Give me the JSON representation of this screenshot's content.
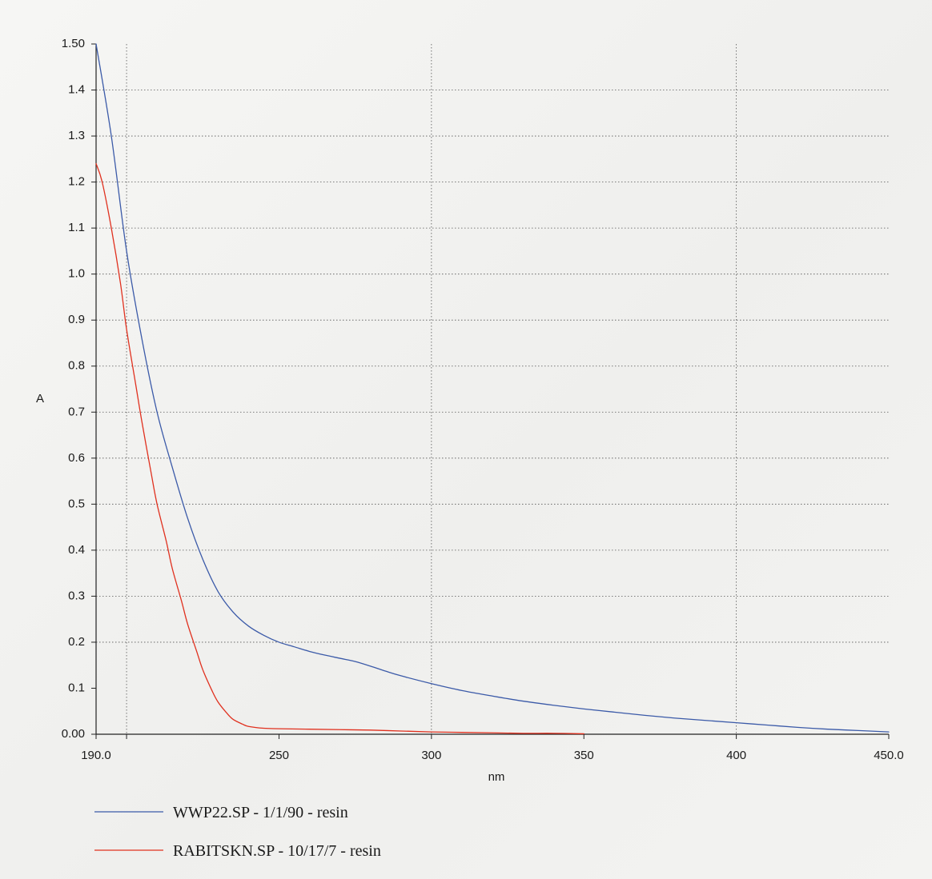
{
  "chart_data": {
    "type": "line",
    "title": "",
    "xlabel": "nm",
    "ylabel": "A",
    "xlim": [
      190,
      450
    ],
    "ylim": [
      0,
      1.5
    ],
    "x_ticks": [
      190,
      200,
      250,
      300,
      350,
      400,
      450
    ],
    "x_tick_labels": [
      "190.0",
      "",
      "250",
      "300",
      "350",
      "400",
      "450.0"
    ],
    "x_grid": [
      200,
      300,
      400
    ],
    "y_ticks": [
      0,
      0.1,
      0.2,
      0.3,
      0.4,
      0.5,
      0.6,
      0.7,
      0.8,
      0.9,
      1.0,
      1.1,
      1.2,
      1.3,
      1.4,
      1.5
    ],
    "y_tick_labels": [
      "0.00",
      "0.1",
      "0.2",
      "0.3",
      "0.4",
      "0.5",
      "0.6",
      "0.7",
      "0.8",
      "0.9",
      "1.0",
      "1.1",
      "1.2",
      "1.3",
      "1.4",
      "1.50"
    ],
    "y_grid": [
      0.2,
      0.3,
      0.4,
      0.5,
      0.6,
      0.7,
      0.8,
      0.9,
      1.0,
      1.1,
      1.2,
      1.3,
      1.4
    ],
    "grid": true,
    "legend_position": "bottom-left",
    "series": [
      {
        "name": "WWP22.SP - 1/1/90 - resin",
        "color": "#3b5aa8",
        "x": [
          190,
          195,
          200,
          205,
          210,
          215,
          220,
          225,
          230,
          235,
          240,
          245,
          250,
          255,
          260,
          265,
          270,
          275,
          280,
          285,
          290,
          300,
          310,
          320,
          330,
          340,
          350,
          360,
          370,
          380,
          390,
          400,
          410,
          420,
          430,
          440,
          450
        ],
        "y": [
          1.5,
          1.3,
          1.05,
          0.86,
          0.7,
          0.58,
          0.47,
          0.38,
          0.31,
          0.265,
          0.235,
          0.215,
          0.2,
          0.19,
          0.18,
          0.172,
          0.165,
          0.158,
          0.148,
          0.137,
          0.127,
          0.11,
          0.095,
          0.083,
          0.072,
          0.063,
          0.055,
          0.048,
          0.041,
          0.035,
          0.03,
          0.025,
          0.02,
          0.015,
          0.011,
          0.008,
          0.005
        ]
      },
      {
        "name": "RABITSKN.SP - 10/17/7 - resin",
        "color": "#e0301e",
        "x": [
          190,
          192,
          195,
          198,
          200,
          203,
          205,
          208,
          210,
          213,
          215,
          218,
          220,
          223,
          225,
          228,
          230,
          233,
          235,
          238,
          240,
          245,
          250,
          260,
          270,
          280,
          290,
          300,
          310,
          320,
          330,
          340,
          350
        ],
        "y": [
          1.24,
          1.2,
          1.1,
          0.98,
          0.88,
          0.76,
          0.68,
          0.57,
          0.5,
          0.42,
          0.36,
          0.29,
          0.24,
          0.18,
          0.14,
          0.095,
          0.07,
          0.045,
          0.032,
          0.022,
          0.017,
          0.013,
          0.012,
          0.011,
          0.01,
          0.009,
          0.007,
          0.005,
          0.004,
          0.003,
          0.002,
          0.002,
          0.001
        ]
      }
    ]
  }
}
